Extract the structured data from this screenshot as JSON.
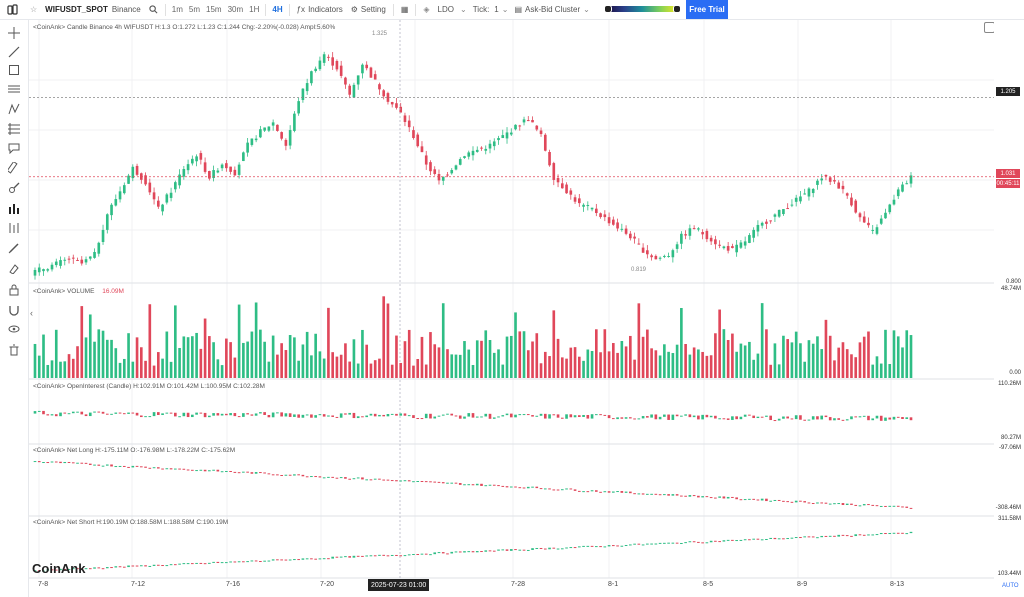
{
  "toolbar": {
    "symbol": "WIFUSDT_SPOT",
    "exchange": "Binance",
    "timeframes": [
      "1m",
      "5m",
      "15m",
      "30m",
      "1H"
    ],
    "active_timeframe": "4H",
    "indicators_label": "Indicators",
    "setting_label": "Setting",
    "ldo_label": "LDO",
    "tick_label": "Tick:",
    "tick_value": "1",
    "cluster_label": "Ask-Bid Cluster",
    "trial_label": "Free Trial"
  },
  "legends": {
    "candle": "<CoinAnk> Candle  Binance 4h WIFUSDT  H:1.3  O:1.272  L:1.23  C:1.244  Chg:-2.20%(-0.028)  Ampl:5.60%",
    "volume_title": "<CoinAnk> VOLUME",
    "volume_value": "16.09M",
    "oi": "<CoinAnk> OpenInterest (Candle)    H:102.91M  O:101.42M  L:100.95M  C:102.28M",
    "netlong": "<CoinAnk> Net Long    H:-175.11M  O:-176.98M  L:-178.22M  C:-175.62M",
    "netshort": "<CoinAnk> Net Short    H:190.19M  O:188.58M  L:188.58M  C:190.19M"
  },
  "price_axis": {
    "high_tag": "1.205",
    "last_price": "1.031",
    "countdown": "00:45:11",
    "low_label": "0.800",
    "max_annotation": "1.325",
    "min_annotation": "0.819",
    "volume_max": "48.74M",
    "volume_zero": "0.00",
    "oi_max": "110.26M",
    "oi_min": "80.27M",
    "netlong_max": "-97.06M",
    "netlong_min": "-308.46M",
    "netshort_max": "311.58M",
    "netshort_min": "103.44M",
    "auto_label": "AUTO"
  },
  "time_axis": {
    "labels": [
      "7-8",
      "7-12",
      "7-16",
      "7-20",
      "7-24",
      "7-28",
      "8-1",
      "8-5",
      "8-9",
      "8-13"
    ],
    "crosshair_time": "2025-07-23 01:00"
  },
  "brand": "CoinAnk",
  "colors": {
    "up": "#2ebd85",
    "down": "#e0475a",
    "accent": "#2a6df4",
    "countdown_tag": "#e0475a",
    "high_tag": "#222222"
  },
  "chart_data": {
    "type": "candlestick",
    "symbol": "WIFUSDT",
    "interval": "4h",
    "x": [
      "7-8",
      "7-12",
      "7-16",
      "7-20",
      "7-24",
      "7-28",
      "8-1",
      "8-5",
      "8-9",
      "8-13"
    ],
    "price": {
      "ylim": [
        0.8,
        1.34
      ],
      "high": 1.325,
      "low": 0.819,
      "last": 1.031,
      "dashed_level": 1.205
    },
    "candles_close": [
      0.83,
      0.84,
      0.85,
      0.84,
      0.86,
      0.95,
      1.0,
      1.05,
      1.02,
      0.96,
      1.0,
      1.05,
      1.08,
      1.03,
      1.06,
      1.04,
      1.1,
      1.13,
      1.15,
      1.1,
      1.2,
      1.26,
      1.3,
      1.27,
      1.21,
      1.28,
      1.24,
      1.2,
      1.17,
      1.12,
      1.06,
      1.02,
      1.05,
      1.08,
      1.09,
      1.1,
      1.12,
      1.14,
      1.16,
      1.12,
      1.03,
      1.0,
      0.97,
      0.96,
      0.94,
      0.92,
      0.9,
      0.87,
      0.85,
      0.86,
      0.9,
      0.92,
      0.9,
      0.88,
      0.87,
      0.89,
      0.92,
      0.94,
      0.96,
      0.98,
      1.0,
      1.03,
      1.02,
      0.99,
      0.94,
      0.91,
      0.95,
      1.0,
      1.03
    ],
    "volume": {
      "ylim": [
        0,
        48.74
      ],
      "unit": "M",
      "last": 16.09
    },
    "open_interest": {
      "ylim": [
        80.27,
        110.26
      ],
      "unit": "M",
      "last": 102.28
    },
    "net_long": {
      "ylim": [
        -308.46,
        -97.06
      ],
      "unit": "M",
      "last": -175.62
    },
    "net_short": {
      "ylim": [
        103.44,
        311.58
      ],
      "unit": "M",
      "last": 190.19
    }
  }
}
